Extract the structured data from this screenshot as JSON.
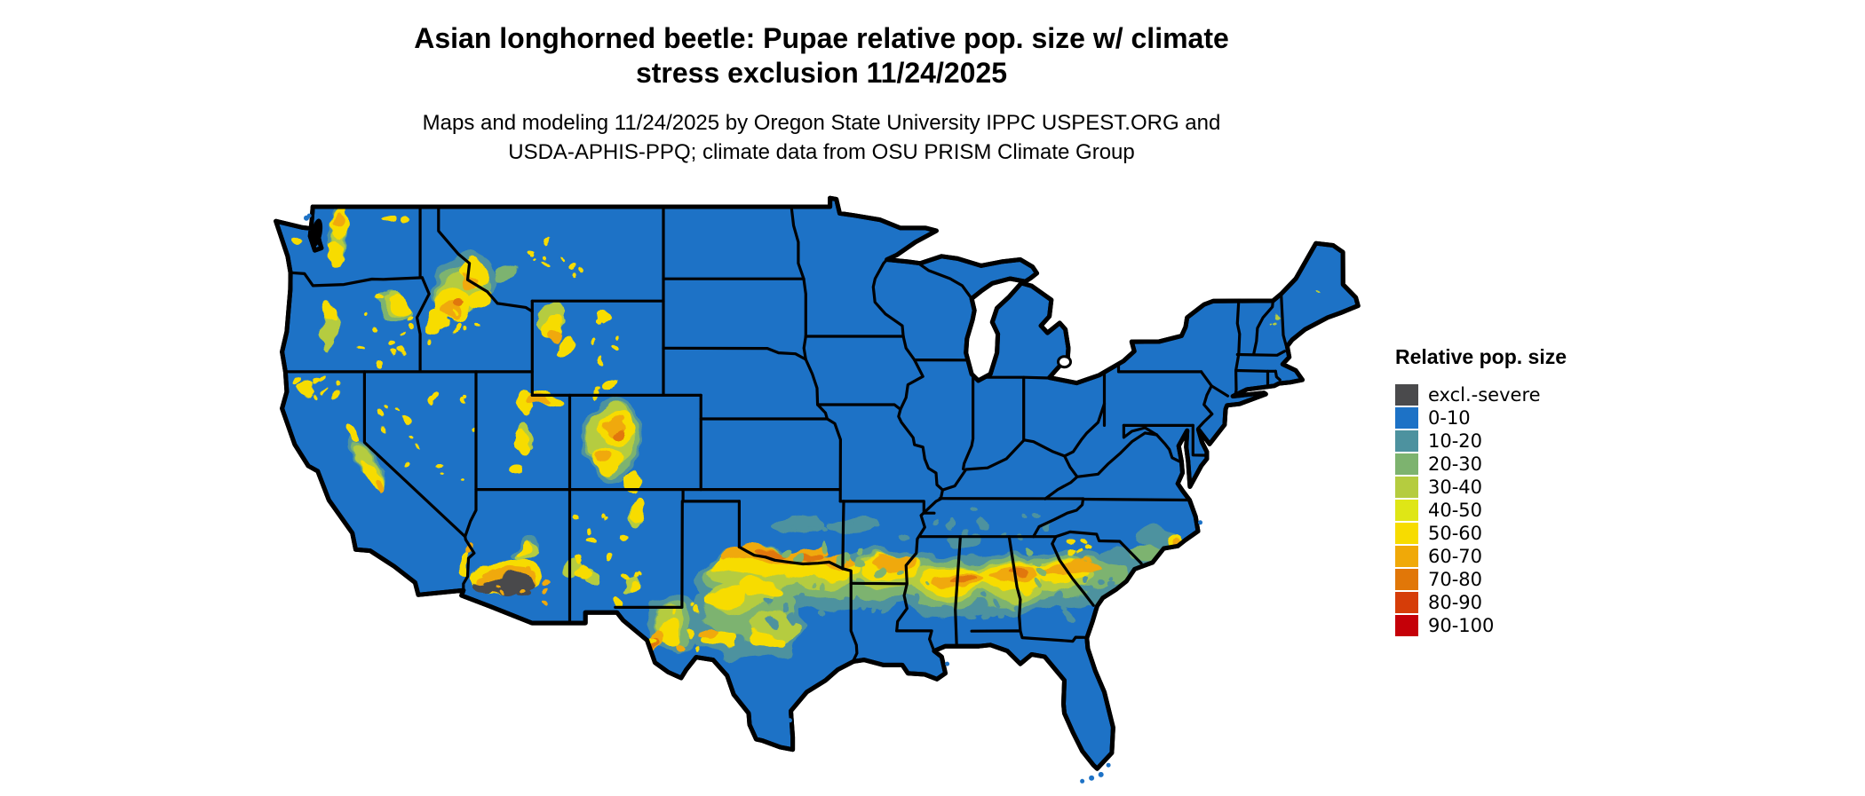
{
  "title": {
    "line1": "Asian longhorned beetle: Pupae relative pop. size w/ climate",
    "line2": "stress exclusion 11/24/2025"
  },
  "subtitle": {
    "line1": "Maps and modeling 11/24/2025 by Oregon State University IPPC USPEST.ORG and",
    "line2": "USDA-APHIS-PPQ; climate data from OSU PRISM Climate Group"
  },
  "legend": {
    "title": "Relative pop. size",
    "items": [
      {
        "label": "excl.-severe",
        "color": "#4a4a4c"
      },
      {
        "label": "0-10",
        "color": "#1d72c6"
      },
      {
        "label": "10-20",
        "color": "#4d929f"
      },
      {
        "label": "20-30",
        "color": "#7db36f"
      },
      {
        "label": "30-40",
        "color": "#b5cc3f"
      },
      {
        "label": "40-50",
        "color": "#dfe616"
      },
      {
        "label": "50-60",
        "color": "#f7dc00"
      },
      {
        "label": "60-70",
        "color": "#f0a908"
      },
      {
        "label": "70-80",
        "color": "#e17708"
      },
      {
        "label": "80-90",
        "color": "#d63d08"
      },
      {
        "label": "90-100",
        "color": "#c50008"
      }
    ]
  },
  "map": {
    "area": "Contiguous United States",
    "border_color": "#000000",
    "background": "#ffffff",
    "land_class": "0-10",
    "note": "Blue (0-10) dominates; yellow-orange hotspots along western mountain ranges and a band across the southern states; dark gray climate-stress exclusion zone in southern Arizona."
  }
}
